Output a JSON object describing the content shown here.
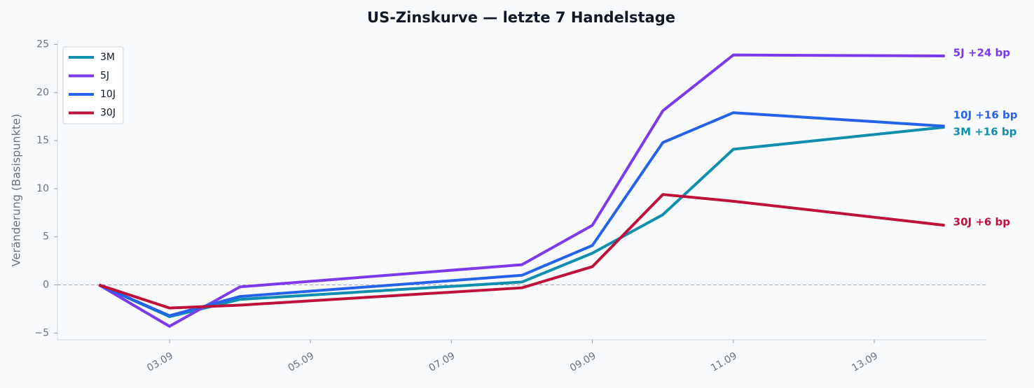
{
  "chart_data": {
    "type": "line",
    "title": "US-Zinskurve — letzte 7 Handelstage",
    "ylabel": "Veränderung (Basispunkte)",
    "x": [
      "02.09",
      "03.09",
      "04.09",
      "08.09",
      "09.09",
      "10.09",
      "11.09",
      "14.09"
    ],
    "xticks": [
      "03.09",
      "05.09",
      "07.09",
      "09.09",
      "11.09",
      "13.09"
    ],
    "ylim": [
      -5.7,
      25.4
    ],
    "yticks": [
      {
        "value": -5,
        "label": "−5"
      },
      0,
      5,
      10,
      15,
      20,
      25
    ],
    "zero_line": true,
    "legend": "upper left",
    "series": [
      {
        "name": "3M",
        "color": "#0e8fae",
        "values": [
          0,
          -3.3,
          -1.5,
          0.3,
          3.3,
          7.3,
          14.1,
          16.4
        ],
        "end_label": "3M +16 bp"
      },
      {
        "name": "5J",
        "color": "#7c3aed",
        "values": [
          0,
          -4.3,
          -0.2,
          2.1,
          6.2,
          18.1,
          23.9,
          23.8
        ],
        "end_label": "5J +24 bp"
      },
      {
        "name": "10J",
        "color": "#2563eb",
        "values": [
          0,
          -3.2,
          -1.2,
          1.0,
          4.1,
          14.8,
          17.9,
          16.5
        ],
        "end_label": "10J +16 bp"
      },
      {
        "name": "30J",
        "color": "#be123c",
        "values": [
          0,
          -2.4,
          -2.1,
          -0.3,
          1.9,
          9.4,
          8.7,
          6.2
        ],
        "end_label": "30J +6 bp"
      }
    ]
  }
}
